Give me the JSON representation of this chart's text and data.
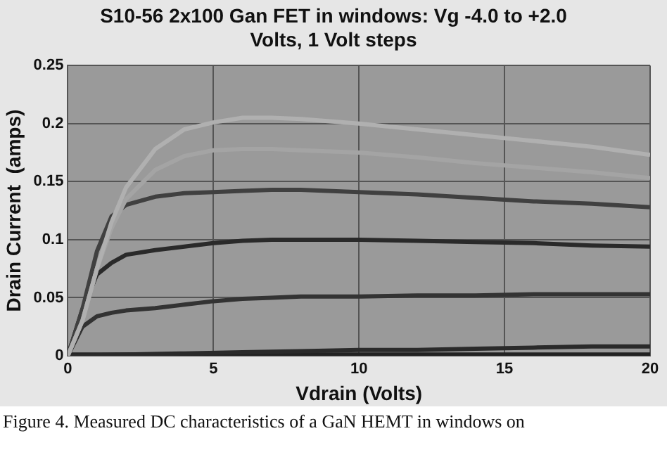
{
  "chart_data": {
    "type": "line",
    "title": "S10-56 2x100  Gan FET in windows: Vg -4.0 to +2.0 Volts, 1 Volt steps",
    "xlabel": "Vdrain (Volts)",
    "ylabel": "Drain Current  (amps)",
    "xlim": [
      0,
      20
    ],
    "xticks": [
      0,
      5,
      10,
      15,
      20
    ],
    "ylim": [
      0,
      0.25
    ],
    "yticks": [
      0,
      0.05,
      0.1,
      0.15,
      0.2,
      0.25
    ],
    "grid": true,
    "legend": false,
    "marker": "none",
    "line_style": "solid",
    "annotations": [
      "Figure 4. Measured DC characteristics of a GaN HEMT in windows on"
    ],
    "series": [
      {
        "color": "#b0b0b0",
        "x": [
          0,
          0.5,
          1,
          1.5,
          2,
          3,
          4,
          5,
          6,
          7,
          8,
          10,
          12,
          14,
          16,
          18,
          20
        ],
        "values": [
          0,
          0.03,
          0.075,
          0.115,
          0.145,
          0.178,
          0.195,
          0.201,
          0.205,
          0.205,
          0.204,
          0.2,
          0.195,
          0.19,
          0.185,
          0.18,
          0.173
        ]
      },
      {
        "color": "#a4a4a4",
        "x": [
          0,
          0.5,
          1,
          1.5,
          2,
          3,
          4,
          5,
          6,
          7,
          8,
          10,
          12,
          14,
          16,
          18,
          20
        ],
        "values": [
          0,
          0.03,
          0.075,
          0.11,
          0.135,
          0.16,
          0.172,
          0.177,
          0.178,
          0.178,
          0.177,
          0.175,
          0.171,
          0.166,
          0.162,
          0.158,
          0.153
        ]
      },
      {
        "color": "#404040",
        "x": [
          0,
          0.5,
          1,
          1.5,
          2,
          3,
          4,
          5,
          6,
          7,
          8,
          10,
          12,
          14,
          16,
          18,
          20
        ],
        "values": [
          0,
          0.04,
          0.09,
          0.12,
          0.13,
          0.137,
          0.14,
          0.141,
          0.142,
          0.143,
          0.143,
          0.141,
          0.139,
          0.136,
          0.133,
          0.131,
          0.128
        ]
      },
      {
        "color": "#2a2a2a",
        "x": [
          0,
          0.5,
          1,
          1.5,
          2,
          3,
          4,
          5,
          6,
          7,
          8,
          10,
          12,
          14,
          16,
          18,
          20
        ],
        "values": [
          0,
          0.04,
          0.07,
          0.08,
          0.087,
          0.091,
          0.094,
          0.097,
          0.099,
          0.1,
          0.1,
          0.1,
          0.099,
          0.098,
          0.097,
          0.095,
          0.094
        ]
      },
      {
        "color": "#333333",
        "x": [
          0,
          0.5,
          1,
          1.5,
          2,
          3,
          4,
          5,
          6,
          7,
          8,
          10,
          12,
          14,
          16,
          18,
          20
        ],
        "values": [
          0,
          0.025,
          0.034,
          0.037,
          0.039,
          0.041,
          0.044,
          0.047,
          0.049,
          0.05,
          0.051,
          0.051,
          0.052,
          0.052,
          0.053,
          0.053,
          0.053
        ]
      },
      {
        "color": "#2a2a2a",
        "x": [
          0,
          2,
          4,
          6,
          8,
          10,
          12,
          14,
          16,
          18,
          20
        ],
        "values": [
          0,
          0.001,
          0.002,
          0.003,
          0.004,
          0.005,
          0.005,
          0.006,
          0.007,
          0.008,
          0.008
        ]
      },
      {
        "color": "#222222",
        "x": [
          0,
          5,
          10,
          15,
          20
        ],
        "values": [
          0.001,
          0.001,
          0.001,
          0.001,
          0.001
        ]
      }
    ]
  }
}
